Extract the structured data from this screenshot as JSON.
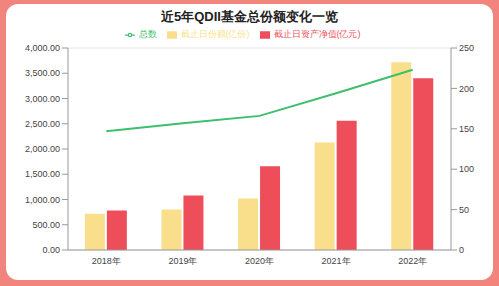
{
  "chart_data": {
    "type": "bar",
    "title": "近5年QDII基金总份额变化一览",
    "categories": [
      "2018年",
      "2019年",
      "2020年",
      "2021年",
      "2022年"
    ],
    "series": [
      {
        "name": "截止日份额(亿份)",
        "color": "#f9df8c",
        "values": [
          720,
          800,
          1020,
          2130,
          3720
        ]
      },
      {
        "name": "截止日资产净值(亿元)",
        "color": "#ee4d5a",
        "values": [
          780,
          1080,
          1660,
          2560,
          3400
        ]
      },
      {
        "name": "总数",
        "type": "line",
        "axis": "y2",
        "color": "#3dbf6e",
        "values": [
          147,
          157,
          166,
          194,
          223
        ]
      }
    ],
    "ylim": [
      0,
      4000
    ],
    "yticks": [
      {
        "value": 0,
        "label": "0.00"
      },
      {
        "value": 500,
        "label": "500.00"
      },
      {
        "value": 1000,
        "label": "1,000.00"
      },
      {
        "value": 1500,
        "label": "1,500.00"
      },
      {
        "value": 2000,
        "label": "2,000.00"
      },
      {
        "value": 2500,
        "label": "2,500.00"
      },
      {
        "value": 3000,
        "label": "3,000.00"
      },
      {
        "value": 3500,
        "label": "3,500.00"
      },
      {
        "value": 4000,
        "label": "4,000.00"
      }
    ],
    "y2lim": [
      0,
      250
    ],
    "y2ticks": [
      0,
      50,
      100,
      150,
      200,
      250
    ],
    "grid": true,
    "legend": "top"
  }
}
